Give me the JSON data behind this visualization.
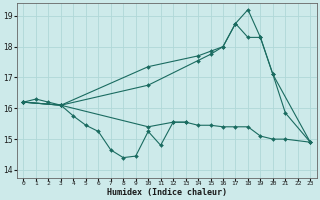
{
  "xlabel": "Humidex (Indice chaleur)",
  "background_color": "#cdeaea",
  "grid_color": "#b0d8d8",
  "line_color": "#1a6b60",
  "xlim": [
    -0.5,
    23.5
  ],
  "ylim": [
    13.75,
    19.4
  ],
  "yticks": [
    14,
    15,
    16,
    17,
    18,
    19
  ],
  "xticks": [
    0,
    1,
    2,
    3,
    4,
    5,
    6,
    7,
    8,
    9,
    10,
    11,
    12,
    13,
    14,
    15,
    16,
    17,
    18,
    19,
    20,
    21,
    22,
    23
  ],
  "series": [
    {
      "x": [
        0,
        1,
        2,
        3,
        4,
        5,
        6,
        7,
        8,
        9,
        10,
        11,
        12,
        13
      ],
      "y": [
        16.2,
        16.3,
        16.2,
        16.1,
        15.75,
        15.45,
        15.25,
        14.65,
        14.4,
        14.45,
        15.25,
        14.8,
        15.55,
        15.55
      ]
    },
    {
      "x": [
        0,
        3,
        10,
        12,
        13,
        14,
        15,
        16,
        17,
        18,
        19,
        20,
        21,
        23
      ],
      "y": [
        16.2,
        16.1,
        15.4,
        15.55,
        15.55,
        15.45,
        15.45,
        15.4,
        15.4,
        15.4,
        15.1,
        15.0,
        15.0,
        14.9
      ]
    },
    {
      "x": [
        0,
        3,
        10,
        14,
        15,
        16,
        17,
        18,
        19,
        20,
        23
      ],
      "y": [
        16.2,
        16.1,
        17.35,
        17.7,
        17.85,
        18.0,
        18.75,
        19.2,
        18.3,
        17.1,
        14.9
      ]
    },
    {
      "x": [
        0,
        3,
        10,
        14,
        15,
        16,
        17,
        18,
        19,
        20,
        21,
        23
      ],
      "y": [
        16.2,
        16.1,
        16.75,
        17.55,
        17.75,
        18.0,
        18.75,
        18.3,
        18.3,
        17.1,
        15.85,
        14.9
      ]
    }
  ]
}
